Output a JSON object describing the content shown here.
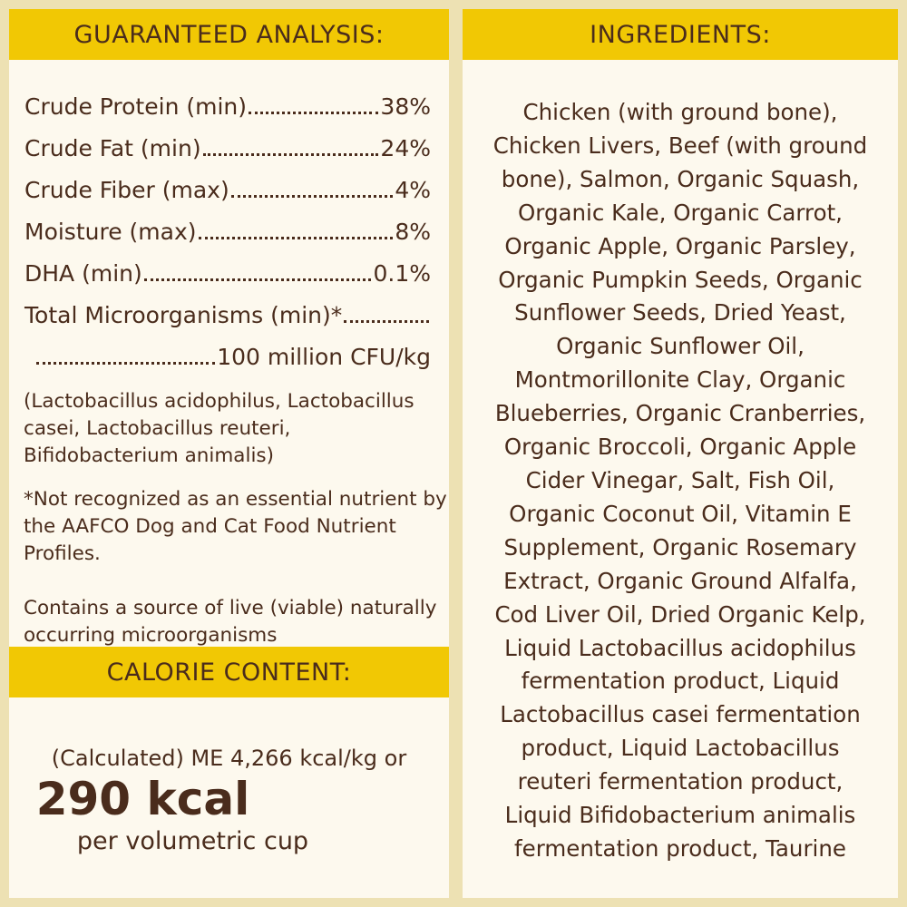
{
  "colors": {
    "background": "#ede1b3",
    "header": "#f1c804",
    "panel": "#fdf9ee",
    "text": "#4a2c1c"
  },
  "analysis": {
    "title": "GUARANTEED ANALYSIS:",
    "rows": [
      {
        "label": "Crude Protein (min)",
        "value": "38%"
      },
      {
        "label": "Crude Fat (min)",
        "value": "24%"
      },
      {
        "label": "Crude Fiber (max)",
        "value": "4%"
      },
      {
        "label": "Moisture (max)",
        "value": "8%"
      },
      {
        "label": "DHA (min)",
        "value": "0.1%"
      },
      {
        "label": "Total Microorganisms (min)*",
        "value": ""
      },
      {
        "label": "",
        "value": "100 million CFU/kg"
      }
    ],
    "strains": "(Lactobacillus acidophilus, Lactobacillus casei, Lactobacillus reuteri, Bifidobacterium animalis)",
    "footnote": "*Not recognized as an essential nutrient by the AAFCO Dog and Cat Food Nutrient Profiles.",
    "live_note": "Contains a source of live (viable) naturally occurring microorganisms"
  },
  "calorie": {
    "title": "CALORIE CONTENT:",
    "line1": "(Calculated) ME 4,266 kcal/kg or",
    "big": "290 kcal",
    "line3": "per volumetric cup"
  },
  "ingredients": {
    "title": "INGREDIENTS:",
    "lines": [
      "Chicken (with ground bone),",
      "Chicken Livers, Beef (with ground",
      "bone), Salmon, Organic Squash,",
      "Organic Kale, Organic Carrot,",
      "Organic Apple, Organic Parsley,",
      "Organic Pumpkin Seeds, Organic",
      "Sunflower Seeds, Dried Yeast,",
      "Organic Sunflower Oil,",
      "Montmorillonite Clay, Organic",
      "Blueberries, Organic Cranberries,",
      "Organic Broccoli, Organic Apple",
      "Cider Vinegar, Salt, Fish Oil,",
      "Organic Coconut Oil, Vitamin E",
      "Supplement, Organic Rosemary",
      "Extract, Organic Ground Alfalfa,",
      "Cod Liver Oil, Dried Organic Kelp,",
      "Liquid Lactobacillus acidophilus",
      "fermentation product, Liquid",
      "Lactobacillus casei fermentation",
      "product, Liquid Lactobacillus",
      "reuteri fermentation product,",
      "Liquid Bifidobacterium animalis",
      "fermentation product, Taurine"
    ]
  }
}
